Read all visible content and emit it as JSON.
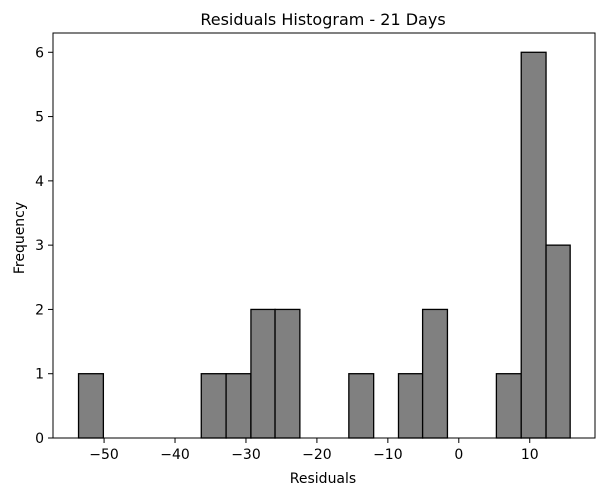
{
  "chart_data": {
    "type": "bar",
    "title": "Residuals Histogram - 21 Days",
    "xlabel": "Residuals",
    "ylabel": "Frequency",
    "xlim": [
      -57.2,
      19.2
    ],
    "ylim": [
      0,
      6.3
    ],
    "xticks": [
      -50,
      -40,
      -30,
      -20,
      -10,
      0,
      10
    ],
    "xtick_labels": [
      "−50",
      "−40",
      "−30",
      "−20",
      "−10",
      "0",
      "10"
    ],
    "yticks": [
      0,
      1,
      2,
      3,
      4,
      5,
      6
    ],
    "ytick_labels": [
      "0",
      "1",
      "2",
      "3",
      "4",
      "5",
      "6"
    ],
    "grid": false,
    "bins": [
      {
        "x0": -53.6,
        "x1": -50.1,
        "count": 1
      },
      {
        "x0": -50.1,
        "x1": -46.7,
        "count": 0
      },
      {
        "x0": -46.7,
        "x1": -43.2,
        "count": 0
      },
      {
        "x0": -43.2,
        "x1": -39.7,
        "count": 0
      },
      {
        "x0": -39.7,
        "x1": -36.3,
        "count": 0
      },
      {
        "x0": -36.3,
        "x1": -32.8,
        "count": 1
      },
      {
        "x0": -32.8,
        "x1": -29.3,
        "count": 1
      },
      {
        "x0": -29.3,
        "x1": -25.9,
        "count": 2
      },
      {
        "x0": -25.9,
        "x1": -22.4,
        "count": 2
      },
      {
        "x0": -22.4,
        "x1": -18.9,
        "count": 0
      },
      {
        "x0": -18.9,
        "x1": -15.5,
        "count": 0
      },
      {
        "x0": -15.5,
        "x1": -12.0,
        "count": 1
      },
      {
        "x0": -12.0,
        "x1": -8.5,
        "count": 0
      },
      {
        "x0": -8.5,
        "x1": -5.1,
        "count": 1
      },
      {
        "x0": -5.1,
        "x1": -1.6,
        "count": 2
      },
      {
        "x0": -1.6,
        "x1": 1.9,
        "count": 0
      },
      {
        "x0": 1.9,
        "x1": 5.3,
        "count": 0
      },
      {
        "x0": 5.3,
        "x1": 8.8,
        "count": 1
      },
      {
        "x0": 8.8,
        "x1": 12.3,
        "count": 6
      },
      {
        "x0": 12.3,
        "x1": 15.7,
        "count": 3
      }
    ],
    "colors": {
      "bar_fill": "#808080",
      "bar_edge": "#000000",
      "axis": "#000000"
    }
  }
}
